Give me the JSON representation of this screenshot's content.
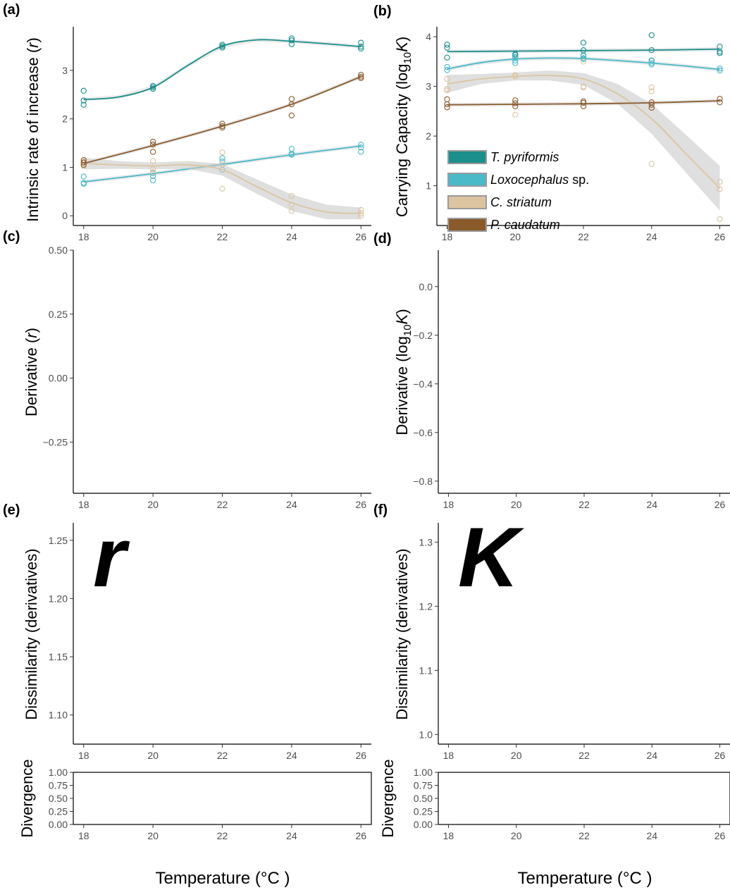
{
  "legend": {
    "items": [
      {
        "italic": "T. pyriformis",
        "suffix": "",
        "color": "#1a8f8c"
      },
      {
        "italic": "Loxocephalus",
        "suffix": " sp.",
        "color": "#4ab9c8"
      },
      {
        "italic": "C. striatum",
        "suffix": "",
        "color": "#dcc4a0"
      },
      {
        "italic": "P. caudatum",
        "suffix": "",
        "color": "#8a5a2b"
      }
    ]
  },
  "x_axis_title": "Temperature (°C )",
  "chart_data": [
    {
      "panel": "(a)",
      "type": "scatter",
      "ylabel": "Intrinsic rate of increase (r)",
      "xlabel": "",
      "x_ticks": [
        18,
        20,
        22,
        24,
        26
      ],
      "y_ticks": [
        "0",
        "1",
        "2",
        "3"
      ],
      "xlim": [
        17.7,
        26.3
      ],
      "ylim": [
        -0.2,
        3.9
      ],
      "series": [
        {
          "name": "T. pyriformis",
          "color": "#1a8f8c",
          "points": [
            [
              18,
              2.58
            ],
            [
              18,
              2.38
            ],
            [
              18,
              2.29
            ],
            [
              20,
              2.68
            ],
            [
              20,
              2.65
            ],
            [
              20,
              2.62
            ],
            [
              22,
              3.53
            ],
            [
              22,
              3.5
            ],
            [
              22,
              3.47
            ],
            [
              24,
              3.66
            ],
            [
              24,
              3.62
            ],
            [
              24,
              3.54
            ],
            [
              26,
              3.57
            ],
            [
              26,
              3.49
            ],
            [
              26,
              3.45
            ]
          ],
          "fit": [
            [
              18,
              2.4
            ],
            [
              19,
              2.45
            ],
            [
              20,
              2.65
            ],
            [
              21,
              3.1
            ],
            [
              22,
              3.5
            ],
            [
              23,
              3.63
            ],
            [
              24,
              3.6
            ],
            [
              25,
              3.55
            ],
            [
              26,
              3.49
            ]
          ]
        },
        {
          "name": "Loxocephalus sp.",
          "color": "#4ab9c8",
          "points": [
            [
              18,
              0.81
            ],
            [
              18,
              0.68
            ],
            [
              18,
              0.66
            ],
            [
              20,
              0.88
            ],
            [
              20,
              0.82
            ],
            [
              20,
              0.73
            ],
            [
              22,
              1.19
            ],
            [
              22,
              1.12
            ],
            [
              22,
              0.95
            ],
            [
              24,
              1.38
            ],
            [
              24,
              1.28
            ],
            [
              24,
              1.26
            ],
            [
              26,
              1.47
            ],
            [
              26,
              1.41
            ],
            [
              26,
              1.32
            ]
          ],
          "fit": [
            [
              18,
              0.7
            ],
            [
              20,
              0.87
            ],
            [
              22,
              1.06
            ],
            [
              24,
              1.26
            ],
            [
              26,
              1.44
            ]
          ]
        },
        {
          "name": "C. striatum",
          "color": "#dcc4a0",
          "points": [
            [
              18,
              1.11
            ],
            [
              18,
              1.08
            ],
            [
              18,
              1.03
            ],
            [
              20,
              1.13
            ],
            [
              20,
              0.96
            ],
            [
              20,
              0.9
            ],
            [
              22,
              1.31
            ],
            [
              22,
              1.06
            ],
            [
              22,
              0.56
            ],
            [
              24,
              0.41
            ],
            [
              24,
              0.23
            ],
            [
              24,
              0.1
            ],
            [
              26,
              0.12
            ],
            [
              26,
              0.05
            ],
            [
              26,
              0.0
            ]
          ],
          "fit": [
            [
              18,
              1.08
            ],
            [
              19,
              1.05
            ],
            [
              20,
              1.03
            ],
            [
              21,
              1.05
            ],
            [
              22,
              0.95
            ],
            [
              23,
              0.6
            ],
            [
              24,
              0.27
            ],
            [
              25,
              0.08
            ],
            [
              26,
              0.05
            ]
          ],
          "band": [
            [
              18,
              0.12
            ],
            [
              19,
              0.08
            ],
            [
              20,
              0.07
            ],
            [
              21,
              0.08
            ],
            [
              22,
              0.12
            ],
            [
              23,
              0.15
            ],
            [
              24,
              0.17
            ],
            [
              25,
              0.15
            ],
            [
              26,
              0.12
            ]
          ]
        },
        {
          "name": "P. caudatum",
          "color": "#8a5a2b",
          "points": [
            [
              18,
              1.15
            ],
            [
              18,
              1.1
            ],
            [
              18,
              1.05
            ],
            [
              20,
              1.53
            ],
            [
              20,
              1.47
            ],
            [
              20,
              1.32
            ],
            [
              22,
              1.9
            ],
            [
              22,
              1.85
            ],
            [
              22,
              1.82
            ],
            [
              24,
              2.41
            ],
            [
              24,
              2.3
            ],
            [
              24,
              2.07
            ],
            [
              26,
              2.91
            ],
            [
              26,
              2.87
            ],
            [
              26,
              2.84
            ]
          ],
          "fit": [
            [
              18,
              1.08
            ],
            [
              20,
              1.45
            ],
            [
              22,
              1.85
            ],
            [
              24,
              2.3
            ],
            [
              26,
              2.87
            ]
          ]
        }
      ]
    },
    {
      "panel": "(b)",
      "type": "scatter",
      "ylabel": "Carrying Capacity (log10K)",
      "xlabel": "",
      "x_ticks": [
        18,
        20,
        22,
        24,
        26
      ],
      "y_ticks": [
        "1",
        "2",
        "3",
        "4"
      ],
      "xlim": [
        17.7,
        26.3
      ],
      "ylim": [
        0.2,
        4.2
      ],
      "series": [
        {
          "name": "T. pyriformis",
          "color": "#1a8f8c",
          "points": [
            [
              18,
              3.84
            ],
            [
              18,
              3.78
            ],
            [
              18,
              3.58
            ],
            [
              20,
              3.65
            ],
            [
              20,
              3.63
            ],
            [
              20,
              3.59
            ],
            [
              22,
              3.88
            ],
            [
              22,
              3.73
            ],
            [
              22,
              3.62
            ],
            [
              24,
              4.03
            ],
            [
              24,
              3.73
            ],
            [
              24,
              3.52
            ],
            [
              26,
              3.8
            ],
            [
              26,
              3.7
            ],
            [
              26,
              3.67
            ]
          ],
          "fit": [
            [
              18,
              3.7
            ],
            [
              20,
              3.71
            ],
            [
              22,
              3.72
            ],
            [
              24,
              3.73
            ],
            [
              26,
              3.75
            ]
          ]
        },
        {
          "name": "Loxocephalus sp.",
          "color": "#4ab9c8",
          "points": [
            [
              18,
              3.39
            ],
            [
              18,
              3.33
            ],
            [
              20,
              3.58
            ],
            [
              20,
              3.52
            ],
            [
              20,
              3.47
            ],
            [
              22,
              3.63
            ],
            [
              22,
              3.57
            ],
            [
              22,
              3.55
            ],
            [
              24,
              3.47
            ],
            [
              24,
              3.44
            ],
            [
              26,
              3.36
            ],
            [
              26,
              3.32
            ]
          ],
          "fit": [
            [
              18,
              3.35
            ],
            [
              19,
              3.48
            ],
            [
              20,
              3.55
            ],
            [
              21,
              3.57
            ],
            [
              22,
              3.56
            ],
            [
              23,
              3.52
            ],
            [
              24,
              3.47
            ],
            [
              25,
              3.41
            ],
            [
              26,
              3.34
            ]
          ]
        },
        {
          "name": "C. striatum",
          "color": "#dcc4a0",
          "points": [
            [
              18,
              3.15
            ],
            [
              18,
              2.95
            ],
            [
              18,
              2.92
            ],
            [
              20,
              3.23
            ],
            [
              20,
              3.2
            ],
            [
              20,
              2.43
            ],
            [
              22,
              3.5
            ],
            [
              22,
              3.0
            ],
            [
              22,
              2.98
            ],
            [
              24,
              2.98
            ],
            [
              24,
              2.9
            ],
            [
              24,
              1.44
            ],
            [
              26,
              1.08
            ],
            [
              26,
              0.93
            ],
            [
              26,
              0.33
            ]
          ],
          "fit": [
            [
              18,
              3.05
            ],
            [
              19,
              3.15
            ],
            [
              20,
              3.2
            ],
            [
              21,
              3.22
            ],
            [
              22,
              3.15
            ],
            [
              23,
              2.85
            ],
            [
              24,
              2.35
            ],
            [
              25,
              1.65
            ],
            [
              26,
              0.95
            ]
          ],
          "band": [
            [
              18,
              0.18
            ],
            [
              19,
              0.1
            ],
            [
              20,
              0.08
            ],
            [
              21,
              0.1
            ],
            [
              22,
              0.12
            ],
            [
              23,
              0.2
            ],
            [
              24,
              0.3
            ],
            [
              25,
              0.38
            ],
            [
              26,
              0.45
            ]
          ]
        },
        {
          "name": "P. caudatum",
          "color": "#8a5a2b",
          "points": [
            [
              18,
              2.74
            ],
            [
              18,
              2.64
            ],
            [
              18,
              2.58
            ],
            [
              20,
              2.72
            ],
            [
              20,
              2.66
            ],
            [
              20,
              2.6
            ],
            [
              22,
              2.7
            ],
            [
              22,
              2.67
            ],
            [
              22,
              2.6
            ],
            [
              24,
              2.68
            ],
            [
              24,
              2.63
            ],
            [
              24,
              2.57
            ],
            [
              26,
              2.75
            ],
            [
              26,
              2.68
            ]
          ],
          "fit": [
            [
              18,
              2.63
            ],
            [
              20,
              2.64
            ],
            [
              22,
              2.65
            ],
            [
              24,
              2.67
            ],
            [
              26,
              2.71
            ]
          ]
        }
      ]
    },
    {
      "panel": "(c)",
      "type": "line",
      "ylabel": "Derivative (r)",
      "x_ticks": [
        18,
        20,
        22,
        24,
        26
      ],
      "y_ticks": [
        "0.50",
        "0.25",
        "0.00",
        "−0.25"
      ],
      "xlim": [
        17.7,
        26.3
      ],
      "ylim": [
        -0.45,
        0.5
      ],
      "series": []
    },
    {
      "panel": "(d)",
      "type": "line",
      "ylabel": "Derivative (log10K)",
      "x_ticks": [
        18,
        20,
        22,
        24,
        26
      ],
      "y_ticks": [
        "0.0",
        "−0.2",
        "−0.4",
        "−0.6",
        "−0.8"
      ],
      "xlim": [
        17.7,
        26.3
      ],
      "ylim": [
        -0.85,
        0.15
      ],
      "series": []
    },
    {
      "panel": "(e)",
      "type": "line",
      "ylabel": "Dissimilarity (derivatives)",
      "annotation": "r",
      "x_ticks": [
        18,
        20,
        22,
        24,
        26
      ],
      "y_ticks": [
        "1.25",
        "1.20",
        "1.15",
        "1.10"
      ],
      "xlim": [
        17.7,
        26.3
      ],
      "ylim": [
        1.075,
        1.265
      ],
      "series": []
    },
    {
      "panel": "(f)",
      "type": "line",
      "ylabel": "Dissimilarity (derivatives)",
      "annotation": "K",
      "x_ticks": [
        18,
        20,
        22,
        24,
        26
      ],
      "y_ticks": [
        "1.3",
        "1.2",
        "1.1",
        "1.0"
      ],
      "xlim": [
        17.7,
        26.3
      ],
      "ylim": [
        0.985,
        1.33
      ],
      "series": []
    },
    {
      "panel": "",
      "type": "area",
      "ylabel": "Divergence",
      "x_ticks": [
        18,
        20,
        22,
        24,
        26
      ],
      "y_ticks": [
        "1.00",
        "0.75",
        "0.50",
        "0.25",
        "0.00"
      ],
      "xlim": [
        17.7,
        26.3
      ],
      "ylim": [
        0,
        1
      ],
      "series": []
    },
    {
      "panel": "",
      "type": "area",
      "ylabel": "Divergence",
      "x_ticks": [
        18,
        20,
        22,
        24,
        26
      ],
      "y_ticks": [
        "1.00",
        "0.75",
        "0.50",
        "0.25",
        "0.00"
      ],
      "xlim": [
        17.7,
        26.3
      ],
      "ylim": [
        0,
        1
      ],
      "series": []
    }
  ]
}
